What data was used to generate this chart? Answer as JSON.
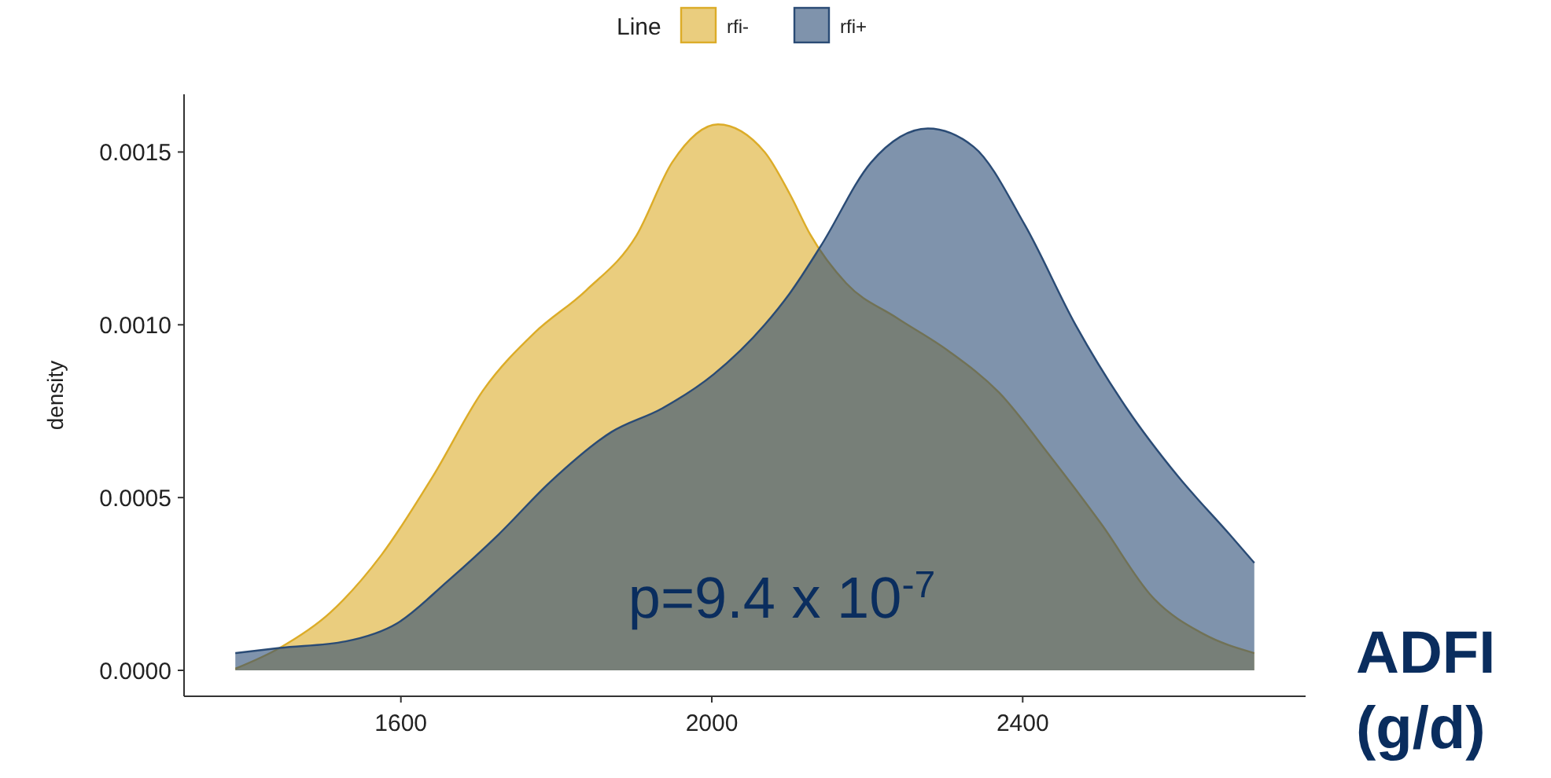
{
  "chart_data": {
    "type": "area",
    "xlabel": "ADFI (g/d)",
    "ylabel": "density",
    "legend_title": "Line",
    "legend": "top",
    "xlim": [
      1321,
      2764
    ],
    "ylim": [
      -7.5e-05,
      0.001667
    ],
    "xticks": [
      1600,
      2000,
      2400
    ],
    "yticks": [
      {
        "value": 0,
        "label": "0.0000"
      },
      {
        "value": 0.0005,
        "label": "0.0005"
      },
      {
        "value": 0.001,
        "label": "0.0010"
      },
      {
        "value": 0.0015,
        "label": "0.0015"
      }
    ],
    "annotations": [
      "p=9.4 x 10$^{-7}$"
    ],
    "series": [
      {
        "name": "rfi-",
        "color": "#dcac28",
        "x": [
          1387,
          1444,
          1509,
          1575,
          1641,
          1706,
          1772,
          1838,
          1903,
          1949,
          2008,
          2068,
          2100,
          2127,
          2173,
          2238,
          2304,
          2370,
          2435,
          2501,
          2567,
          2632,
          2698
        ],
        "values": [
          5e-06,
          6.5e-05,
          0.000167,
          0.000334,
          0.000561,
          0.000811,
          0.000977,
          0.001099,
          0.001258,
          0.00147,
          0.00158,
          0.0015,
          0.00138,
          0.00126,
          0.00112,
          0.00102,
          0.000925,
          0.000803,
          0.000621,
          0.000424,
          0.000212,
          0.000106,
          5e-05
        ]
      },
      {
        "name": "rfi+",
        "color": "#2a4b75",
        "x": [
          1387,
          1444,
          1529,
          1595,
          1660,
          1726,
          1792,
          1871,
          1936,
          2002,
          2068,
          2100,
          2140,
          2205,
          2278,
          2337,
          2403,
          2468,
          2534,
          2600,
          2666,
          2698
        ],
        "values": [
          5e-05,
          6.5e-05,
          8.4e-05,
          0.000136,
          0.000258,
          0.000394,
          0.000545,
          0.00069,
          0.000758,
          0.000856,
          0.001,
          0.00109,
          0.001227,
          0.00147,
          0.001568,
          0.001515,
          0.001288,
          0.001,
          0.000758,
          0.000561,
          0.000394,
          0.000311
        ]
      }
    ]
  }
}
